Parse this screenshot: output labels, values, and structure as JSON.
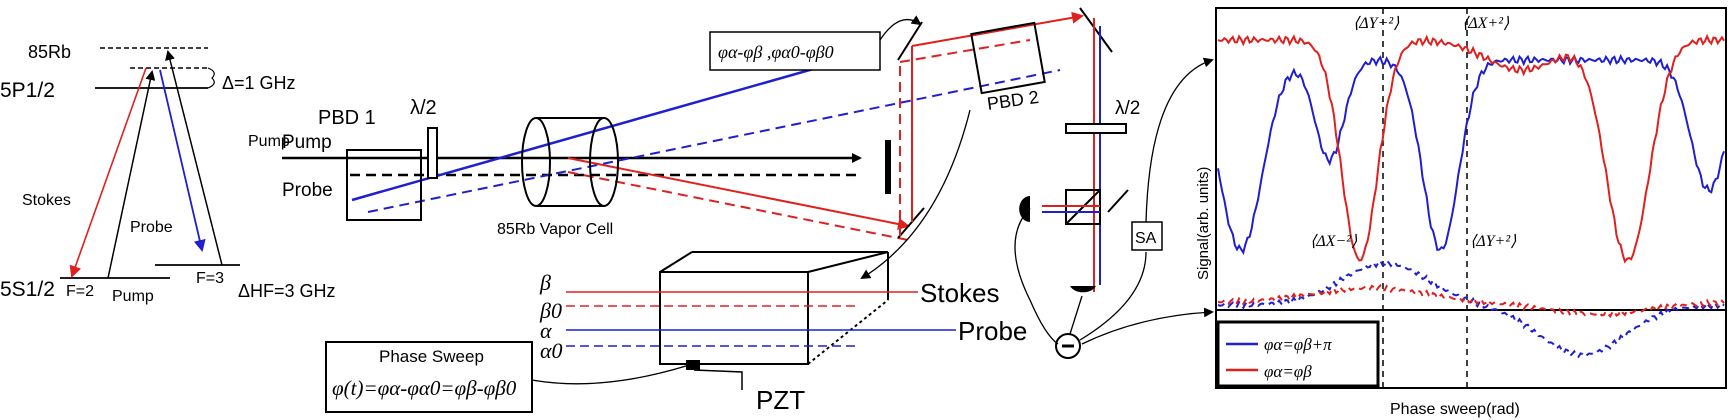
{
  "level_diagram": {
    "isotope": "85Rb",
    "excited_state": "5P1/2",
    "ground_state": "5S1/2",
    "detuning": "Δ=1 GHz",
    "hyperfine_splitting": "ΔHF=3 GHz",
    "f_lower": "F=2",
    "f_upper": "F=3",
    "stokes_label": "Stokes",
    "probe_label": "Probe",
    "pump_label": "Pump"
  },
  "setup": {
    "pump_input_label": "Pump",
    "pump_beam_label": "Pump",
    "probe_beam_label": "Probe",
    "pbd1_label": "PBD 1",
    "halfwave_1": "λ/2",
    "vapor_cell_label": "85Rb Vapor Cell",
    "pbd2_label": "PBD 2",
    "halfwave_2": "λ/2",
    "phase_box_text": "φα-φβ ,φα0-φβ0",
    "sa_label": "SA",
    "minus_sign": "−"
  },
  "inset": {
    "beta": "β",
    "beta0": "β0",
    "alpha": "α",
    "alpha0": "α0",
    "stokes": "Stokes",
    "probe": "Probe",
    "pzt": "PZT",
    "sweep_title": "Phase Sweep",
    "sweep_formula": "φ(t)=φα-φα0=φβ-φβ0"
  },
  "chart_data": {
    "type": "line",
    "title": "",
    "xlabel": "Phase sweep(rad)",
    "ylabel": "Signal(arb. units)",
    "grid": false,
    "legend_position": "bottom-left",
    "annotations": [
      "⟨ΔY−²⟩",
      "⟨ΔX+²⟩",
      "⟨ΔX−²⟩",
      "⟨ΔY+²⟩"
    ],
    "series": [
      {
        "name": "φα=φβ+π",
        "color": "#1f1fd0",
        "style": "solid"
      },
      {
        "name": "φα=φβ",
        "color": "#e0201e",
        "style": "solid"
      },
      {
        "name": "φα=φβ+π",
        "color": "#1f1fd0",
        "style": "dashed"
      },
      {
        "name": "φα=φβ",
        "color": "#e0201e",
        "style": "dashed"
      }
    ]
  },
  "colors": {
    "red": "#e0201e",
    "blue": "#1f1fd0",
    "black": "#000000"
  }
}
